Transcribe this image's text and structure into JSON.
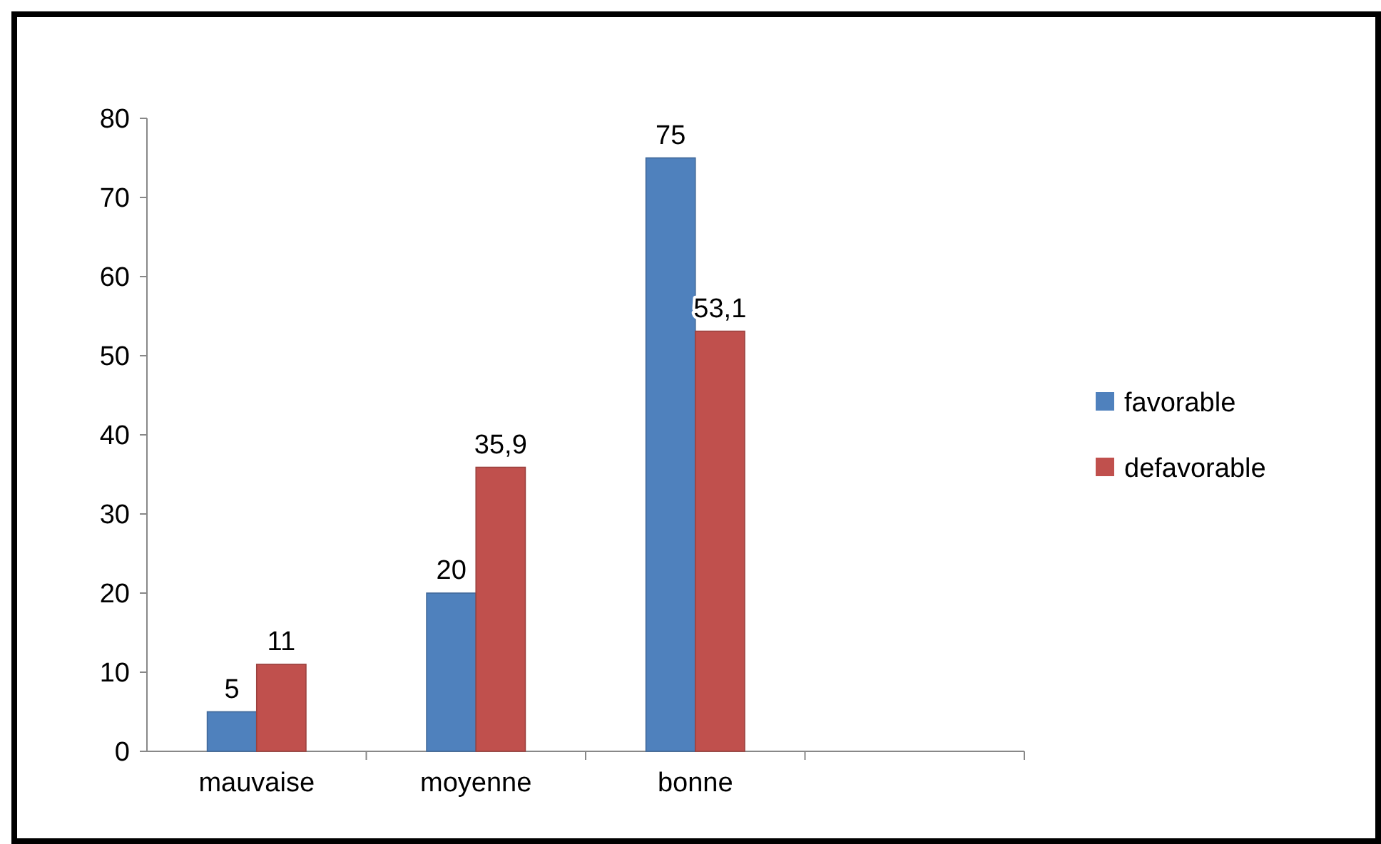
{
  "chart_data": {
    "type": "bar",
    "categories": [
      "mauvaise",
      "moyenne",
      "bonne",
      null
    ],
    "series": [
      {
        "name": "favorable",
        "color": "#4f81bd",
        "values": [
          5,
          20,
          75,
          null
        ],
        "value_labels": [
          "5",
          "20",
          "75",
          null
        ]
      },
      {
        "name": "defavorable",
        "color": "#c0504d",
        "values": [
          11,
          35.9,
          53.1,
          null
        ],
        "value_labels": [
          "11",
          "35,9",
          "53,1",
          null
        ]
      }
    ],
    "ylim": [
      0,
      80
    ],
    "yticks": [
      0,
      10,
      20,
      30,
      40,
      50,
      60,
      70,
      80
    ],
    "grid": false,
    "legend": "right"
  }
}
